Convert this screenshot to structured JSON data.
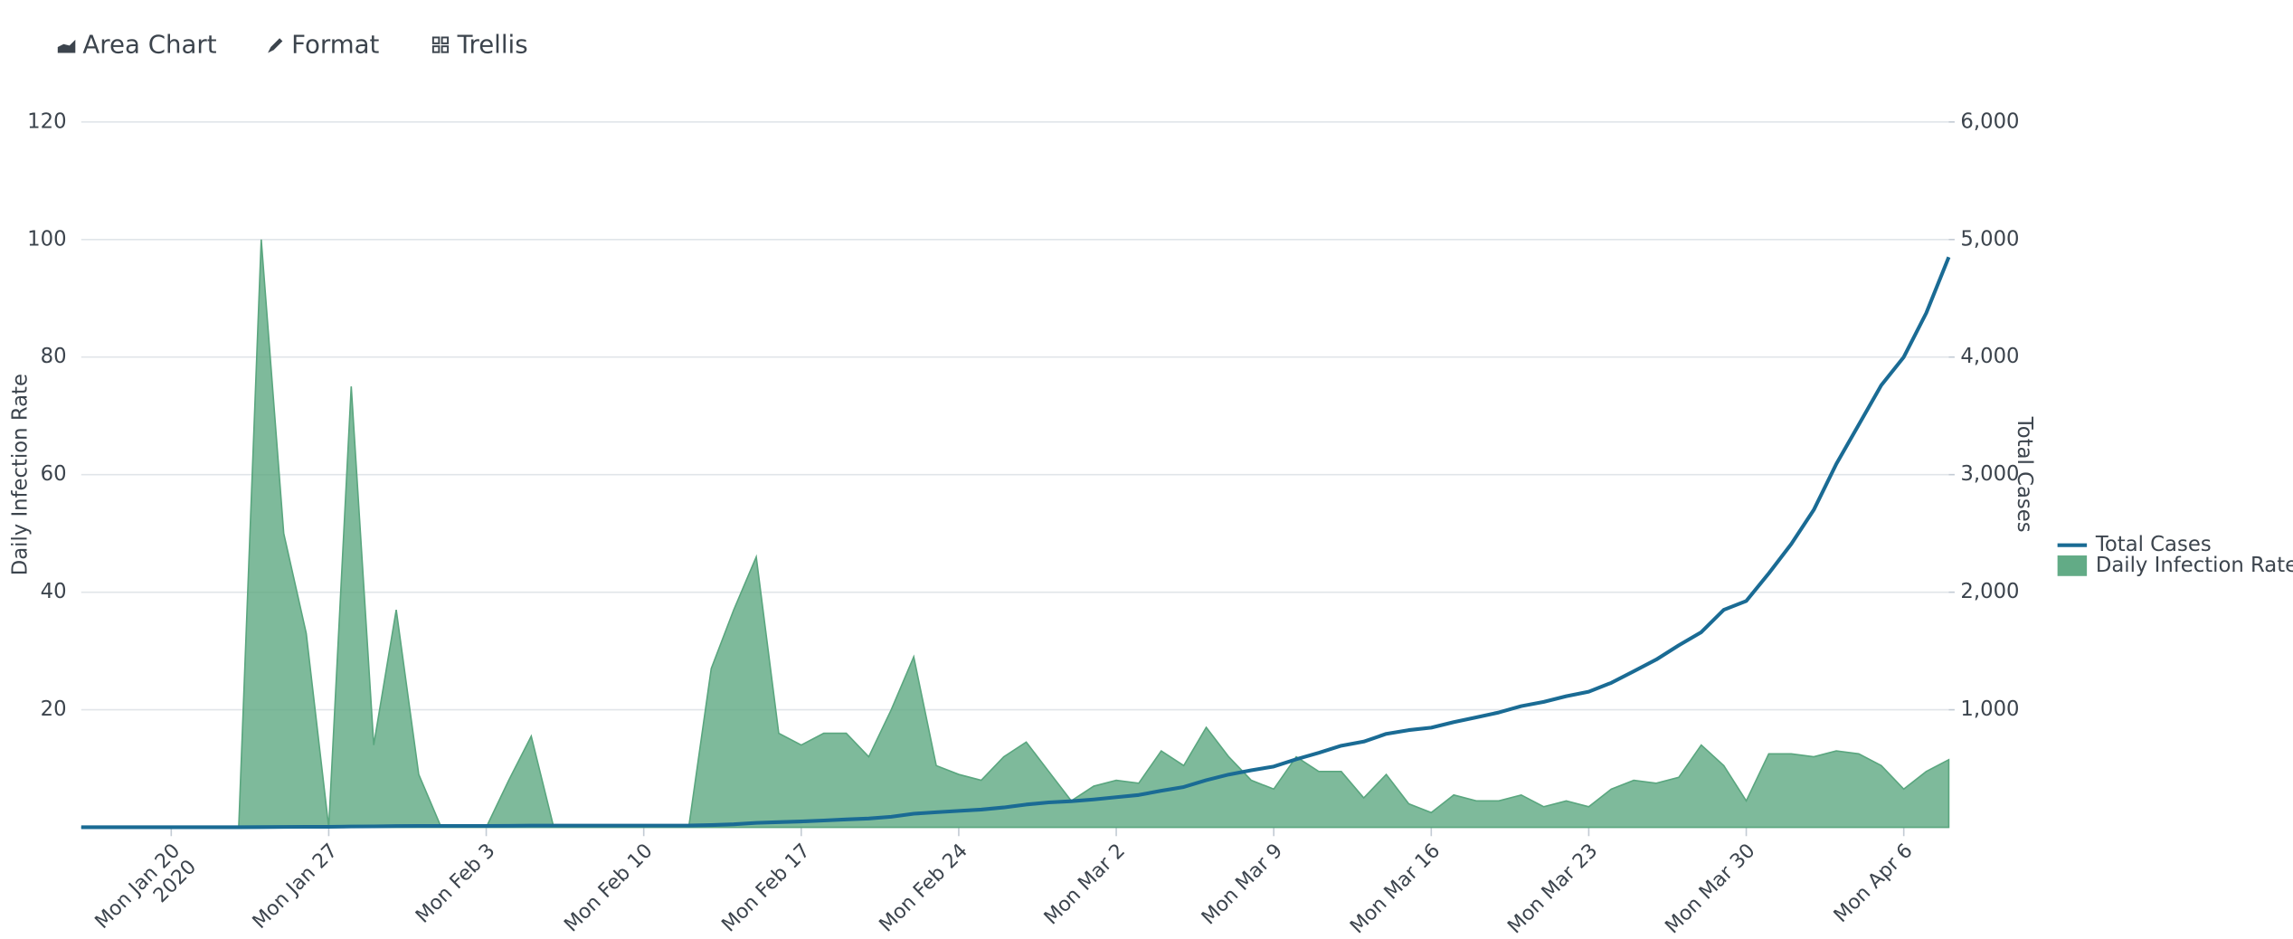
{
  "toolbar": [
    "Area Chart",
    "Format",
    "Trellis"
  ],
  "chart_data": {
    "type": "area",
    "y_label": "Daily Infection Rate",
    "y2_label": "Total Cases",
    "x": [
      "2020-01-16",
      "2020-01-17",
      "2020-01-18",
      "2020-01-19",
      "2020-01-20",
      "2020-01-21",
      "2020-01-22",
      "2020-01-23",
      "2020-01-24",
      "2020-01-25",
      "2020-01-26",
      "2020-01-27",
      "2020-01-28",
      "2020-01-29",
      "2020-01-30",
      "2020-01-31",
      "2020-02-01",
      "2020-02-02",
      "2020-02-03",
      "2020-02-04",
      "2020-02-05",
      "2020-02-06",
      "2020-02-07",
      "2020-02-08",
      "2020-02-09",
      "2020-02-10",
      "2020-02-11",
      "2020-02-12",
      "2020-02-13",
      "2020-02-14",
      "2020-02-15",
      "2020-02-16",
      "2020-02-17",
      "2020-02-18",
      "2020-02-19",
      "2020-02-20",
      "2020-02-21",
      "2020-02-22",
      "2020-02-23",
      "2020-02-24",
      "2020-02-25",
      "2020-02-26",
      "2020-02-27",
      "2020-02-28",
      "2020-02-29",
      "2020-03-01",
      "2020-03-02",
      "2020-03-03",
      "2020-03-04",
      "2020-03-05",
      "2020-03-06",
      "2020-03-07",
      "2020-03-08",
      "2020-03-09",
      "2020-03-10",
      "2020-03-11",
      "2020-03-12",
      "2020-03-13",
      "2020-03-14",
      "2020-03-15",
      "2020-03-16",
      "2020-03-17",
      "2020-03-18",
      "2020-03-19",
      "2020-03-20",
      "2020-03-21",
      "2020-03-22",
      "2020-03-23",
      "2020-03-24",
      "2020-03-25",
      "2020-03-26",
      "2020-03-27",
      "2020-03-28",
      "2020-03-29",
      "2020-03-30",
      "2020-03-31",
      "2020-04-01",
      "2020-04-02",
      "2020-04-03",
      "2020-04-04",
      "2020-04-05",
      "2020-04-06",
      "2020-04-07",
      "2020-04-08"
    ],
    "xlim": [
      "2020-01-16",
      "2020-04-08"
    ],
    "xticks": [
      {
        "value": "2020-01-20",
        "label": "Mon Jan 20"
      },
      {
        "value": "2020-01-27",
        "label": "Mon Jan 27"
      },
      {
        "value": "2020-02-03",
        "label": "Mon Feb 3"
      },
      {
        "value": "2020-02-10",
        "label": "Mon Feb 10"
      },
      {
        "value": "2020-02-17",
        "label": "Mon Feb 17"
      },
      {
        "value": "2020-02-24",
        "label": "Mon Feb 24"
      },
      {
        "value": "2020-03-02",
        "label": "Mon Mar 2"
      },
      {
        "value": "2020-03-09",
        "label": "Mon Mar 9"
      },
      {
        "value": "2020-03-16",
        "label": "Mon Mar 16"
      },
      {
        "value": "2020-03-23",
        "label": "Mon Mar 23"
      },
      {
        "value": "2020-03-30",
        "label": "Mon Mar 30"
      },
      {
        "value": "2020-04-06",
        "label": "Mon Apr 6"
      }
    ],
    "xtick_year": "2020",
    "ylim": [
      0,
      120
    ],
    "yticks": [
      20,
      40,
      60,
      80,
      100,
      120
    ],
    "y2lim": [
      0,
      6000
    ],
    "y2ticks": [
      {
        "value": 1000,
        "label": "1,000"
      },
      {
        "value": 2000,
        "label": "2,000"
      },
      {
        "value": 3000,
        "label": "3,000"
      },
      {
        "value": 4000,
        "label": "4,000"
      },
      {
        "value": 5000,
        "label": "5,000"
      },
      {
        "value": 6000,
        "label": "6,000"
      }
    ],
    "grid": true,
    "series": [
      {
        "name": "Total Cases",
        "type": "line",
        "axis": "y2",
        "color": "#1a6b94",
        "values": [
          1,
          1,
          1,
          1,
          1,
          1,
          1,
          1,
          2,
          3,
          4,
          4,
          7,
          8,
          11,
          12,
          12,
          12,
          12,
          13,
          15,
          15,
          15,
          15,
          15,
          15,
          15,
          15,
          19,
          26,
          38,
          44,
          50,
          58,
          67,
          75,
          90,
          116,
          128,
          140,
          151,
          169,
          194,
          212,
          222,
          237,
          256,
          275,
          311,
          343,
          401,
          449,
          485,
          517,
          579,
          634,
          694,
          729,
          795,
          827,
          848,
          895,
          935,
          977,
          1031,
          1067,
          1115,
          1154,
          1229,
          1327,
          1427,
          1548,
          1660,
          1850,
          1925,
          2160,
          2410,
          2700,
          3090,
          3425,
          3760,
          4000,
          4375,
          4850
        ]
      },
      {
        "name": "Daily Infection Rate",
        "type": "area",
        "axis": "y",
        "color": "#5aa67f",
        "values": [
          0,
          0,
          0,
          0,
          0,
          0,
          0,
          0,
          100,
          50,
          33,
          0,
          75,
          14,
          37,
          9,
          0,
          0,
          0,
          8,
          15.5,
          0,
          0,
          0,
          0,
          0,
          0,
          0,
          27,
          37,
          46,
          16,
          14,
          16,
          16,
          12,
          20,
          29,
          10.5,
          9,
          8,
          12,
          14.5,
          9.5,
          4.5,
          7,
          8,
          7.5,
          13,
          10.5,
          17,
          12,
          8,
          6.5,
          12,
          9.5,
          9.5,
          5,
          9,
          4,
          2.5,
          5.5,
          4.5,
          4.5,
          5.5,
          3.5,
          4.5,
          3.5,
          6.5,
          8,
          7.5,
          8.5,
          14,
          10.5,
          4.5,
          12.5,
          12.5,
          12,
          13,
          12.5,
          10.5,
          6.5,
          9.5,
          11.5
        ]
      }
    ],
    "legend": "right"
  }
}
